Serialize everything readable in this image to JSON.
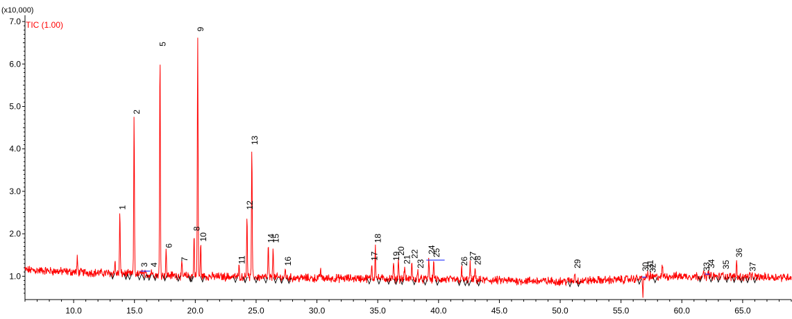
{
  "chart_data": {
    "type": "line",
    "title": "",
    "xlabel": "",
    "ylabel": "",
    "y_scale_label": "(x10,000)",
    "y_scale_factor": 10000,
    "xlim": [
      6.0,
      69.0
    ],
    "ylim": [
      0.45,
      7.05
    ],
    "x_major_ticks": [
      10.0,
      15.0,
      20.0,
      25.0,
      30.0,
      35.0,
      40.0,
      45.0,
      50.0,
      55.0,
      60.0,
      65.0
    ],
    "x_tick_labels": [
      "10.0",
      "15.0",
      "20.0",
      "25.0",
      "30.0",
      "35.0",
      "40.0",
      "45.0",
      "50.0",
      "55.0",
      "60.0",
      "65.0"
    ],
    "y_major_ticks": [
      1.0,
      2.0,
      3.0,
      4.0,
      5.0,
      6.0,
      7.0
    ],
    "y_tick_labels": [
      "1.0",
      "2.0",
      "3.0",
      "4.0",
      "5.0",
      "6.0",
      "7.0"
    ],
    "grid": false,
    "legend_placement": "top-left",
    "series": [
      {
        "name": "TIC (1.00)",
        "color": "#ff0000"
      }
    ],
    "baseline": [
      [
        6.0,
        1.15
      ],
      [
        10.0,
        1.1
      ],
      [
        15.0,
        1.05
      ],
      [
        20.0,
        1.0
      ],
      [
        25.0,
        0.98
      ],
      [
        30.0,
        0.95
      ],
      [
        35.0,
        0.95
      ],
      [
        40.0,
        0.92
      ],
      [
        45.0,
        0.9
      ],
      [
        50.0,
        0.88
      ],
      [
        55.0,
        0.92
      ],
      [
        56.8,
        0.95
      ],
      [
        58.5,
        1.0
      ],
      [
        62.0,
        1.0
      ],
      [
        65.0,
        0.98
      ],
      [
        69.0,
        0.98
      ]
    ],
    "peaks": [
      {
        "label": "1",
        "rt": 13.8,
        "height": 2.5
      },
      {
        "label": "2",
        "rt": 14.97,
        "height": 4.75
      },
      {
        "label": "3",
        "rt": 15.6,
        "height": 1.15
      },
      {
        "label": "4",
        "rt": 16.4,
        "height": 1.15
      },
      {
        "label": "5",
        "rt": 17.1,
        "height": 6.35
      },
      {
        "label": "6",
        "rt": 17.6,
        "height": 1.6
      },
      {
        "label": "7",
        "rt": 18.9,
        "height": 1.28
      },
      {
        "label": "8",
        "rt": 19.9,
        "height": 2.0
      },
      {
        "label": "9",
        "rt": 20.2,
        "height": 6.7
      },
      {
        "label": "10",
        "rt": 20.45,
        "height": 1.75
      },
      {
        "label": "11",
        "rt": 23.6,
        "height": 1.22
      },
      {
        "label": "12",
        "rt": 24.25,
        "height": 2.5
      },
      {
        "label": "13",
        "rt": 24.65,
        "height": 4.03
      },
      {
        "label": "14",
        "rt": 26.0,
        "height": 1.72
      },
      {
        "label": "15",
        "rt": 26.4,
        "height": 1.72
      },
      {
        "label": "16",
        "rt": 27.4,
        "height": 1.18
      },
      {
        "label": "17",
        "rt": 34.5,
        "height": 1.3
      },
      {
        "label": "18",
        "rt": 34.8,
        "height": 1.72
      },
      {
        "label": "19",
        "rt": 36.3,
        "height": 1.3
      },
      {
        "label": "20",
        "rt": 36.7,
        "height": 1.42
      },
      {
        "label": "21",
        "rt": 37.2,
        "height": 1.22
      },
      {
        "label": "22",
        "rt": 37.8,
        "height": 1.35
      },
      {
        "label": "23",
        "rt": 38.3,
        "height": 1.12
      },
      {
        "label": "24",
        "rt": 39.2,
        "height": 1.45
      },
      {
        "label": "25",
        "rt": 39.6,
        "height": 1.38
      },
      {
        "label": "26",
        "rt": 41.9,
        "height": 1.18
      },
      {
        "label": "27",
        "rt": 42.6,
        "height": 1.3
      },
      {
        "label": "28",
        "rt": 43.0,
        "height": 1.2
      },
      {
        "label": "29",
        "rt": 51.2,
        "height": 1.12
      },
      {
        "label": "30",
        "rt": 56.8,
        "height": 1.05
      },
      {
        "label": "31",
        "rt": 57.2,
        "height": 1.1
      },
      {
        "label": "32",
        "rt": 57.4,
        "height": 1.02
      },
      {
        "label": "33",
        "rt": 61.8,
        "height": 1.05
      },
      {
        "label": "34",
        "rt": 62.2,
        "height": 1.12
      },
      {
        "label": "35",
        "rt": 63.4,
        "height": 1.1
      },
      {
        "label": "36",
        "rt": 64.5,
        "height": 1.38
      },
      {
        "label": "37",
        "rt": 65.6,
        "height": 1.05
      }
    ],
    "unlabeled_peaks": [
      {
        "rt": 10.3,
        "height": 1.42
      },
      {
        "rt": 13.4,
        "height": 1.35
      },
      {
        "rt": 30.3,
        "height": 1.2
      },
      {
        "rt": 58.4,
        "height": 1.25
      },
      {
        "rt": 56.8,
        "height": 0.5
      }
    ],
    "integration_marks": [
      [
        13.2,
        14.3
      ],
      [
        14.6,
        15.4
      ],
      [
        15.8,
        16.2
      ],
      [
        16.7,
        17.5
      ],
      [
        18.6,
        19.6
      ],
      [
        19.7,
        20.6
      ],
      [
        23.3,
        24.1
      ],
      [
        24.1,
        25.0
      ],
      [
        25.8,
        26.6
      ],
      [
        27.1,
        27.7
      ],
      [
        34.3,
        35.1
      ],
      [
        35.9,
        36.5
      ],
      [
        37.0,
        38.0
      ],
      [
        38.9,
        39.9
      ],
      [
        41.7,
        42.2
      ],
      [
        42.5,
        43.3
      ],
      [
        50.8,
        51.5
      ],
      [
        56.5,
        57.8
      ],
      [
        61.5,
        62.4
      ],
      [
        63.0,
        63.7
      ],
      [
        64.3,
        64.9
      ],
      [
        65.4,
        66.0
      ]
    ],
    "baseline_segments": [
      {
        "from": 15.5,
        "to": 16.3,
        "value": 1.12
      },
      {
        "from": 39.0,
        "to": 40.5,
        "value": 1.38
      },
      {
        "from": 56.7,
        "to": 57.1,
        "value": 0.98
      },
      {
        "from": 61.9,
        "to": 62.3,
        "value": 1.05
      }
    ]
  }
}
